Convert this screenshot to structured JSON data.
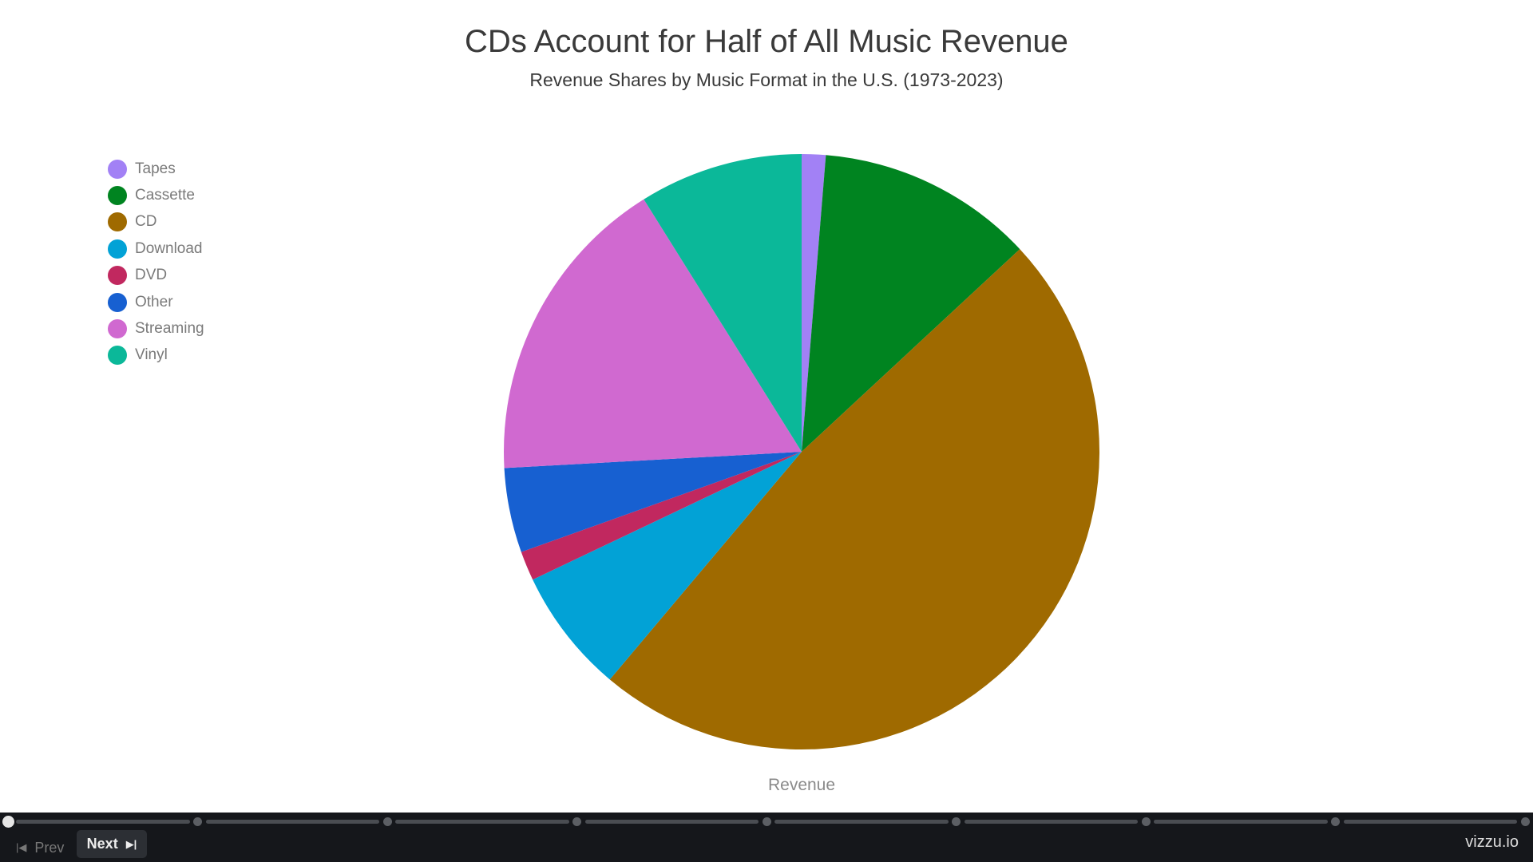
{
  "chart_data": {
    "type": "pie",
    "title": "CDs Account for Half of All Music Revenue",
    "subtitle": "Revenue Shares by Music Format in the U.S. (1973-2023)",
    "label": "Revenue",
    "legend_position": "left",
    "series": [
      {
        "name": "Tapes",
        "value": 1.3,
        "color": "#a281f5"
      },
      {
        "name": "Cassette",
        "value": 11.8,
        "color": "#008420"
      },
      {
        "name": "CD",
        "value": 48.1,
        "color": "#9f6a00"
      },
      {
        "name": "Download",
        "value": 6.8,
        "color": "#02a2d6"
      },
      {
        "name": "DVD",
        "value": 1.6,
        "color": "#c1285f"
      },
      {
        "name": "Other",
        "value": 4.6,
        "color": "#1760d1"
      },
      {
        "name": "Streaming",
        "value": 17.0,
        "color": "#d069d0"
      },
      {
        "name": "Vinyl",
        "value": 8.9,
        "color": "#0bb899"
      }
    ]
  },
  "controls": {
    "prev_label": "Prev",
    "next_label": "Next",
    "brand": "vizzu.io",
    "steps": 9,
    "current_step": 0
  }
}
